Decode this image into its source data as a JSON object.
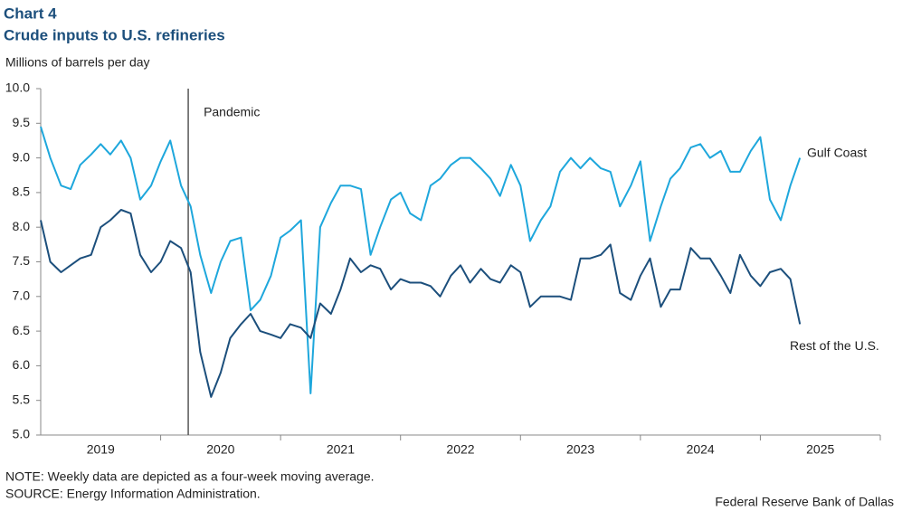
{
  "chart_data": {
    "type": "line",
    "title": "Chart 4",
    "subtitle": "Crude inputs to U.S. refineries",
    "y_axis_label": "Millions of barrels per day",
    "note": "NOTE: Weekly data are depicted as a four-week moving average.",
    "source": "SOURCE: Energy Information Administration.",
    "credit": "Federal Reserve Bank of Dallas",
    "annotations": [
      {
        "text": "Pandemic",
        "x": 2020.23
      }
    ],
    "categories": [
      "2019",
      "2020",
      "2021",
      "2022",
      "2023",
      "2024",
      "2025"
    ],
    "xlim": [
      2019,
      2026
    ],
    "ylim": [
      5,
      10
    ],
    "yticks": [
      {
        "value": 5,
        "label": "5.0"
      },
      5.5,
      {
        "value": 6,
        "label": "6.0"
      },
      6.5,
      {
        "value": 7,
        "label": "7.0"
      },
      7.5,
      {
        "value": 8,
        "label": "8.0"
      },
      8.5,
      {
        "value": 9,
        "label": "9.0"
      },
      9.5,
      {
        "value": 10,
        "label": "10.0"
      }
    ],
    "grid": false,
    "x": [
      2019.0,
      2019.08,
      2019.17,
      2019.25,
      2019.33,
      2019.42,
      2019.5,
      2019.58,
      2019.67,
      2019.75,
      2019.83,
      2019.92,
      2020.0,
      2020.08,
      2020.17,
      2020.25,
      2020.33,
      2020.42,
      2020.5,
      2020.58,
      2020.67,
      2020.75,
      2020.83,
      2020.92,
      2021.0,
      2021.08,
      2021.17,
      2021.25,
      2021.33,
      2021.42,
      2021.5,
      2021.58,
      2021.67,
      2021.75,
      2021.83,
      2021.92,
      2022.0,
      2022.08,
      2022.17,
      2022.25,
      2022.33,
      2022.42,
      2022.5,
      2022.58,
      2022.67,
      2022.75,
      2022.83,
      2022.92,
      2023.0,
      2023.08,
      2023.17,
      2023.25,
      2023.33,
      2023.42,
      2023.5,
      2023.58,
      2023.67,
      2023.75,
      2023.83,
      2023.92,
      2024.0,
      2024.08,
      2024.17,
      2024.25,
      2024.33,
      2024.42,
      2024.5,
      2024.58,
      2024.67,
      2024.75,
      2024.83,
      2024.92,
      2025.0,
      2025.08,
      2025.17,
      2025.25,
      2025.33
    ],
    "series": [
      {
        "name": "Gulf Coast",
        "color": "#1ea7dc",
        "values": [
          9.45,
          9.0,
          8.6,
          8.55,
          8.9,
          9.05,
          9.2,
          9.05,
          9.25,
          9.0,
          8.4,
          8.6,
          8.95,
          9.25,
          8.6,
          8.3,
          7.6,
          7.05,
          7.5,
          7.8,
          7.85,
          6.8,
          6.95,
          7.3,
          7.85,
          7.95,
          8.1,
          5.6,
          8.0,
          8.35,
          8.6,
          8.6,
          8.55,
          7.6,
          8.0,
          8.4,
          8.5,
          8.2,
          8.1,
          8.6,
          8.7,
          8.9,
          9.0,
          9.0,
          8.85,
          8.7,
          8.45,
          8.9,
          8.6,
          7.8,
          8.1,
          8.3,
          8.8,
          9.0,
          8.85,
          9.0,
          8.85,
          8.8,
          8.3,
          8.6,
          8.95,
          7.8,
          8.3,
          8.7,
          8.85,
          9.15,
          9.2,
          9.0,
          9.1,
          8.8,
          8.8,
          9.1,
          9.3,
          8.4,
          8.1,
          8.6,
          9.0
        ]
      },
      {
        "name": "Rest of the U.S.",
        "color": "#1c4f7c",
        "values": [
          8.1,
          7.5,
          7.35,
          7.45,
          7.55,
          7.6,
          8.0,
          8.1,
          8.25,
          8.2,
          7.6,
          7.35,
          7.5,
          7.8,
          7.7,
          7.35,
          6.2,
          5.55,
          5.9,
          6.4,
          6.6,
          6.75,
          6.5,
          6.45,
          6.4,
          6.6,
          6.55,
          6.4,
          6.9,
          6.75,
          7.1,
          7.55,
          7.35,
          7.45,
          7.4,
          7.1,
          7.25,
          7.2,
          7.2,
          7.15,
          7.0,
          7.3,
          7.45,
          7.2,
          7.4,
          7.25,
          7.2,
          7.45,
          7.35,
          6.85,
          7.0,
          7.0,
          7.0,
          6.95,
          7.55,
          7.55,
          7.6,
          7.75,
          7.05,
          6.95,
          7.3,
          7.55,
          6.85,
          7.1,
          7.1,
          7.7,
          7.55,
          7.55,
          7.3,
          7.05,
          7.6,
          7.3,
          7.15,
          7.35,
          7.4,
          7.25,
          6.6
        ]
      }
    ]
  }
}
